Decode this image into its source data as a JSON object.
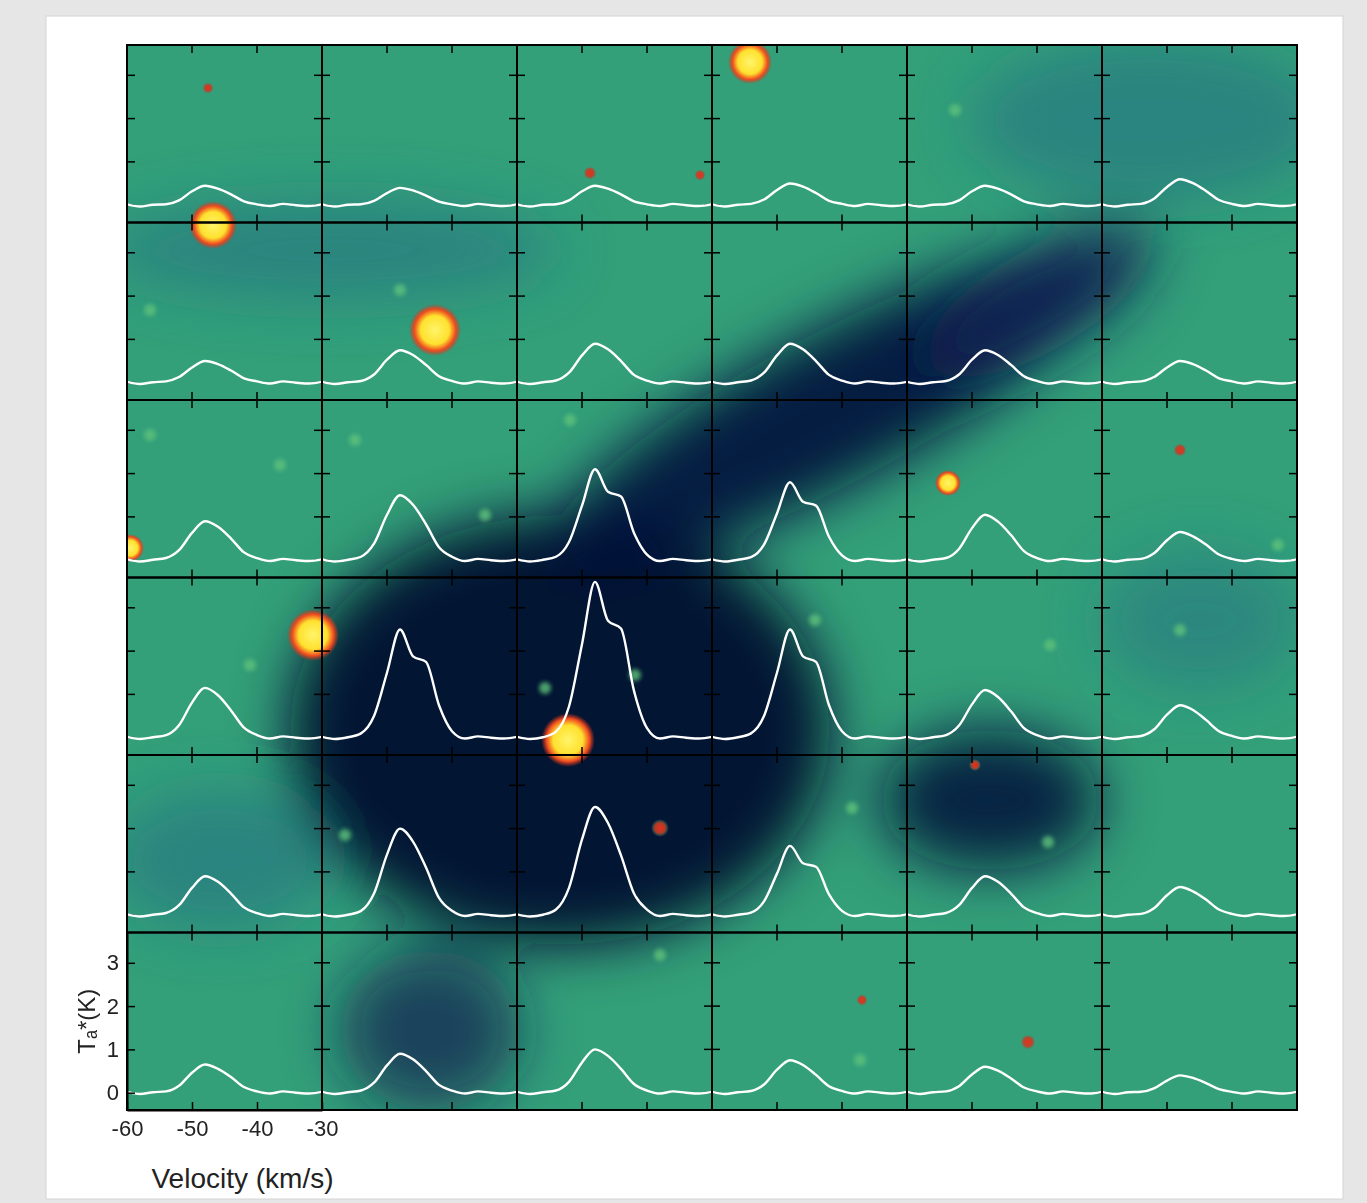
{
  "chart_data": {
    "type": "line",
    "x_label": "Velocity (km/s)",
    "y_label": "Tₐ*(K)",
    "color": "#ffffff",
    "x": [
      -60,
      -58,
      -56,
      -54,
      -52,
      -50,
      -48,
      -46,
      -44,
      -42,
      -40,
      -38,
      -36,
      -34,
      -32,
      -30
    ],
    "xlim": [
      -60,
      -30
    ],
    "xticks": [
      -60,
      -50,
      -40,
      -30
    ],
    "ylim": [
      -0.4,
      3.7
    ],
    "yticks": [
      0,
      1,
      2,
      3
    ],
    "series": [
      {
        "values": [
          0.02,
          -0.03,
          0.01,
          0.02,
          0.11,
          0.32,
          0.45,
          0.38,
          0.25,
          0.09,
          0.02,
          -0.02,
          0.03,
          0,
          -0.02,
          0.02
        ]
      },
      {
        "values": [
          0.02,
          -0.03,
          0.01,
          0.02,
          0.1,
          0.28,
          0.4,
          0.34,
          0.22,
          0.08,
          0.02,
          -0.02,
          0.03,
          0,
          -0.02,
          0.02
        ]
      },
      {
        "values": [
          0.02,
          -0.03,
          0.01,
          0.02,
          0.11,
          0.32,
          0.45,
          0.38,
          0.25,
          0.09,
          0.02,
          -0.02,
          0.03,
          0,
          -0.02,
          0.02
        ]
      },
      {
        "values": [
          0.02,
          -0.03,
          0.01,
          0.03,
          0.13,
          0.35,
          0.5,
          0.43,
          0.28,
          0.1,
          0.03,
          -0.02,
          0.03,
          0,
          -0.02,
          0.02
        ]
      },
      {
        "values": [
          0.02,
          -0.03,
          0.01,
          0.02,
          0.11,
          0.32,
          0.45,
          0.38,
          0.25,
          0.09,
          0.02,
          -0.02,
          0.03,
          0,
          -0.02,
          0.02
        ]
      },
      {
        "values": [
          0.02,
          -0.03,
          0.01,
          0.03,
          0.15,
          0.42,
          0.6,
          0.51,
          0.33,
          0.12,
          0.03,
          -0.02,
          0.03,
          0,
          -0.02,
          0.02
        ]
      },
      {
        "values": [
          0.02,
          -0.03,
          0.01,
          0.03,
          0.13,
          0.35,
          0.5,
          0.43,
          0.28,
          0.1,
          0.03,
          -0.02,
          0.03,
          0,
          -0.02,
          0.02
        ]
      },
      {
        "values": [
          0.02,
          -0.03,
          0.01,
          0.04,
          0.19,
          0.53,
          0.75,
          0.64,
          0.41,
          0.15,
          0.04,
          -0.02,
          0.03,
          0,
          -0.02,
          0.02
        ]
      },
      {
        "values": [
          0.02,
          -0.03,
          0.01,
          0.05,
          0.23,
          0.63,
          0.9,
          0.77,
          0.5,
          0.18,
          0.05,
          -0.02,
          0.03,
          0,
          -0.02,
          0.02
        ]
      },
      {
        "values": [
          0.02,
          -0.03,
          0.01,
          0.05,
          0.23,
          0.63,
          0.9,
          0.77,
          0.5,
          0.18,
          0.05,
          -0.02,
          0.03,
          0,
          -0.02,
          0.02
        ]
      },
      {
        "values": [
          0.02,
          -0.03,
          0.01,
          0.04,
          0.19,
          0.53,
          0.75,
          0.64,
          0.41,
          0.15,
          0.04,
          -0.02,
          0.03,
          0,
          -0.02,
          0.02
        ]
      },
      {
        "values": [
          0.02,
          -0.03,
          0.01,
          0.03,
          0.13,
          0.35,
          0.5,
          0.43,
          0.28,
          0.1,
          0.03,
          -0.02,
          0.03,
          0,
          -0.02,
          0.02
        ]
      },
      {
        "values": [
          0.02,
          -0.03,
          0.01,
          0.05,
          0.23,
          0.63,
          0.9,
          0.77,
          0.5,
          0.18,
          0.05,
          -0.02,
          0.03,
          0,
          -0.02,
          0.02
        ]
      },
      {
        "values": [
          0.02,
          -0.03,
          0.01,
          0.08,
          0.38,
          1.05,
          1.5,
          1.28,
          0.83,
          0.3,
          0.08,
          -0.02,
          0.03,
          0,
          -0.02,
          0.02
        ]
      },
      {
        "values": [
          0.02,
          -0.03,
          0.01,
          0.08,
          0.42,
          1.26,
          2.1,
          1.58,
          1.47,
          0.63,
          0.13,
          -0.02,
          0.03,
          0,
          -0.02,
          0.02
        ]
      },
      {
        "values": [
          0.02,
          -0.03,
          0.01,
          0.07,
          0.36,
          1.08,
          1.8,
          1.35,
          1.26,
          0.54,
          0.11,
          -0.02,
          0.03,
          0,
          -0.02,
          0.02
        ]
      },
      {
        "values": [
          0.02,
          -0.03,
          0.01,
          0.05,
          0.26,
          0.74,
          1.05,
          0.89,
          0.58,
          0.21,
          0.05,
          -0.02,
          0.03,
          0,
          -0.02,
          0.02
        ]
      },
      {
        "values": [
          0.02,
          -0.03,
          0.01,
          0.03,
          0.16,
          0.46,
          0.65,
          0.55,
          0.36,
          0.13,
          0.03,
          -0.02,
          0.03,
          0,
          -0.02,
          0.02
        ]
      },
      {
        "values": [
          0.02,
          -0.03,
          0.01,
          0.06,
          0.29,
          0.81,
          1.15,
          0.98,
          0.63,
          0.23,
          0.06,
          -0.02,
          0.03,
          0,
          -0.02,
          0.02
        ]
      },
      {
        "values": [
          0.02,
          -0.03,
          0.01,
          0.1,
          0.5,
          1.5,
          2.5,
          1.88,
          1.75,
          0.75,
          0.15,
          -0.02,
          0.03,
          0,
          -0.02,
          0.02
        ]
      },
      {
        "values": [
          0.02,
          -0.03,
          0.01,
          0.14,
          0.72,
          2.16,
          3.6,
          2.7,
          2.52,
          1.08,
          0.22,
          -0.02,
          0.03,
          0,
          -0.02,
          0.02
        ]
      },
      {
        "values": [
          0.02,
          -0.03,
          0.01,
          0.1,
          0.5,
          1.5,
          2.5,
          1.88,
          1.75,
          0.75,
          0.15,
          -0.02,
          0.03,
          0,
          -0.02,
          0.02
        ]
      },
      {
        "values": [
          0.02,
          -0.03,
          0.01,
          0.06,
          0.28,
          0.77,
          1.1,
          0.94,
          0.61,
          0.22,
          0.06,
          -0.02,
          0.03,
          0,
          -0.02,
          0.02
        ]
      },
      {
        "values": [
          0.02,
          -0.03,
          0.01,
          0.04,
          0.19,
          0.53,
          0.75,
          0.64,
          0.41,
          0.15,
          0.04,
          -0.02,
          0.03,
          0,
          -0.02,
          0.02
        ]
      },
      {
        "values": [
          0.02,
          -0.03,
          0.01,
          0.05,
          0.23,
          0.63,
          0.9,
          0.77,
          0.5,
          0.18,
          0.05,
          -0.02,
          0.03,
          0,
          -0.02,
          0.02
        ]
      },
      {
        "values": [
          0.02,
          -0.03,
          0.01,
          0.1,
          0.5,
          1.4,
          2,
          1.7,
          1.1,
          0.4,
          0.1,
          -0.02,
          0.03,
          0,
          -0.02,
          0.02
        ]
      },
      {
        "values": [
          0.02,
          -0.03,
          0.01,
          0.13,
          0.63,
          1.75,
          2.5,
          2.13,
          1.38,
          0.5,
          0.13,
          -0.02,
          0.03,
          0,
          -0.02,
          0.02
        ]
      },
      {
        "values": [
          0.02,
          -0.03,
          0.01,
          0.06,
          0.32,
          0.96,
          1.6,
          1.2,
          1.12,
          0.48,
          0.1,
          -0.02,
          0.03,
          0,
          -0.02,
          0.02
        ]
      },
      {
        "values": [
          0.02,
          -0.03,
          0.01,
          0.05,
          0.23,
          0.63,
          0.9,
          0.77,
          0.5,
          0.18,
          0.05,
          -0.02,
          0.03,
          0,
          -0.02,
          0.02
        ]
      },
      {
        "values": [
          0.02,
          -0.03,
          0.01,
          0.03,
          0.16,
          0.46,
          0.65,
          0.55,
          0.36,
          0.13,
          0.03,
          -0.02,
          0.03,
          0,
          -0.02,
          0.02
        ]
      },
      {
        "values": [
          0.02,
          -0.03,
          0.01,
          0.03,
          0.16,
          0.46,
          0.65,
          0.55,
          0.36,
          0.13,
          0.03,
          -0.02,
          0.03,
          0,
          -0.02,
          0.02
        ]
      },
      {
        "values": [
          0.02,
          -0.03,
          0.01,
          0.05,
          0.23,
          0.63,
          0.9,
          0.77,
          0.5,
          0.18,
          0.05,
          -0.02,
          0.03,
          0,
          -0.02,
          0.02
        ]
      },
      {
        "values": [
          0.02,
          -0.03,
          0.01,
          0.05,
          0.25,
          0.7,
          1,
          0.85,
          0.55,
          0.2,
          0.05,
          -0.02,
          0.03,
          0,
          -0.02,
          0.02
        ]
      },
      {
        "values": [
          0.02,
          -0.03,
          0.01,
          0.04,
          0.19,
          0.53,
          0.75,
          0.64,
          0.41,
          0.15,
          0.04,
          -0.02,
          0.03,
          0,
          -0.02,
          0.02
        ]
      },
      {
        "values": [
          0.02,
          -0.03,
          0.01,
          0.03,
          0.15,
          0.42,
          0.6,
          0.51,
          0.33,
          0.12,
          0.03,
          -0.02,
          0.03,
          0,
          -0.02,
          0.02
        ]
      },
      {
        "values": [
          0.02,
          -0.03,
          0.01,
          0.02,
          0.1,
          0.28,
          0.4,
          0.34,
          0.22,
          0.08,
          0.02,
          -0.02,
          0.03,
          0,
          -0.02,
          0.02
        ]
      }
    ]
  }
}
